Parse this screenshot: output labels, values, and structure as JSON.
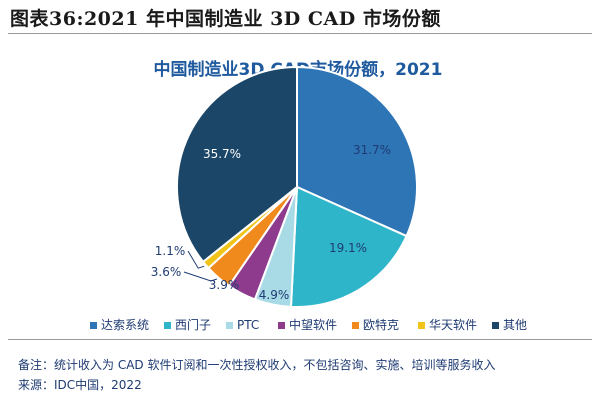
{
  "figure": {
    "title": "图表36:2021 年中国制造业 3D CAD 市场份额"
  },
  "chart_data": {
    "type": "pie",
    "title": "中国制造业3D CAD市场份额，2021",
    "categories": [
      "达索系统",
      "西门子",
      "PTC",
      "中望软件",
      "欧特克",
      "华天软件",
      "其他"
    ],
    "values": [
      31.7,
      19.1,
      4.9,
      3.9,
      3.6,
      1.1,
      35.7
    ],
    "labels": [
      "31.7%",
      "19.1%",
      "4.9%",
      "3.9%",
      "3.6%",
      "1.1%",
      "35.7%"
    ],
    "colors": [
      "#2e75b6",
      "#2eb5c9",
      "#a9dbe6",
      "#8e3b8e",
      "#f08a1c",
      "#f0c419",
      "#1b4668"
    ],
    "legend": "bottom",
    "start_angle_deg": 0,
    "direction": "clockwise"
  },
  "footnote": {
    "note": "备注：统计收入为 CAD 软件订阅和一次性授权收入，不包括咨询、实施、培训等服务收入",
    "source": "来源：IDC中国，2022"
  }
}
